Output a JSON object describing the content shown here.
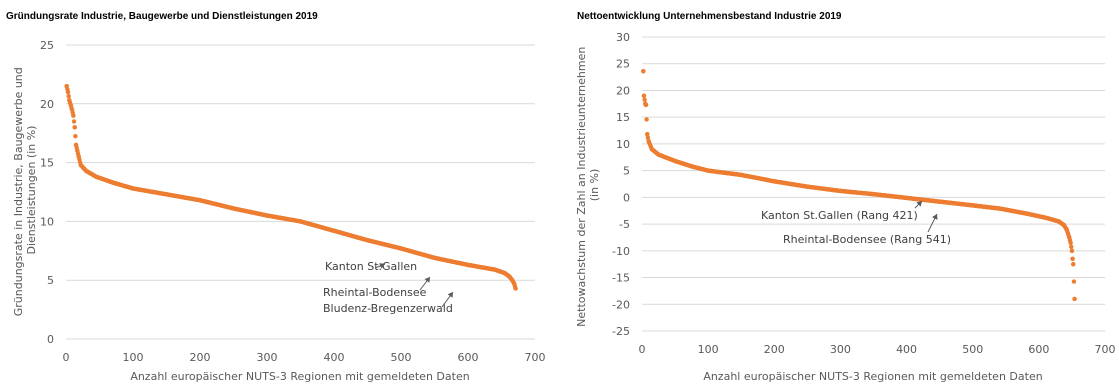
{
  "colors": {
    "marker": "#ED7D31",
    "grid": "#D9D9D9",
    "text": "#595959"
  },
  "chart_data": [
    {
      "type": "scatter",
      "title": "Gründungsrate Industrie, Baugewerbe und Dienstleistungen 2019",
      "xlabel": "Anzahl europäischer NUTS-3 Regionen mit gemeldeten Daten",
      "ylabel": "Gründungsrate in Industrie, Baugewerbe und Dienstleistungen (in %)",
      "ylabel_lines": [
        "Gründungsrate in Industrie, Baugewerbe und",
        "Dienstleistungen (in %)"
      ],
      "xlim": [
        0,
        700
      ],
      "ylim": [
        0,
        25
      ],
      "xticks": [
        0,
        100,
        200,
        300,
        400,
        500,
        600,
        700
      ],
      "yticks": [
        0,
        5,
        10,
        15,
        20,
        25
      ],
      "grid": "horizontal",
      "series": [
        {
          "points_shape": [
            [
              1,
              21.5
            ],
            [
              3,
              21.0
            ],
            [
              5,
              20.3
            ],
            [
              7,
              19.9
            ],
            [
              9,
              19.5
            ],
            [
              11,
              19.0
            ],
            [
              13,
              18.0
            ],
            [
              15,
              16.5
            ],
            [
              17,
              16.0
            ],
            [
              19,
              15.5
            ],
            [
              22,
              14.8
            ],
            [
              30,
              14.3
            ],
            [
              45,
              13.8
            ],
            [
              70,
              13.3
            ],
            [
              100,
              12.8
            ],
            [
              150,
              12.3
            ],
            [
              200,
              11.8
            ],
            [
              250,
              11.1
            ],
            [
              300,
              10.5
            ],
            [
              350,
              10.0
            ],
            [
              400,
              9.2
            ],
            [
              450,
              8.4
            ],
            [
              500,
              7.7
            ],
            [
              550,
              6.9
            ],
            [
              600,
              6.3
            ],
            [
              640,
              5.9
            ],
            [
              655,
              5.6
            ],
            [
              662,
              5.3
            ],
            [
              666,
              5.0
            ],
            [
              669,
              4.7
            ],
            [
              671,
              4.3
            ]
          ],
          "n_points": 671
        }
      ],
      "annotations": [
        {
          "label": "Kanton St.Gallen",
          "x": 475,
          "y": 5.9
        },
        {
          "label": "Rheintal-Bodensee",
          "x": 552,
          "y": 5.4
        },
        {
          "label": "Bludenz-Bregenzerwald",
          "x": 590,
          "y": 4.6
        }
      ]
    },
    {
      "type": "scatter",
      "title": "Nettoentwicklung Unternehmensbestand Industrie 2019",
      "xlabel": "Anzahl europäischer NUTS-3 Regionen mit gemeldeten Daten",
      "ylabel": "Nettowachstum der Zahl an Industrieunternehmen (in %)",
      "ylabel_lines": [
        "Nettowachstum der Zahl an Industrieunternehmen",
        "(in %)"
      ],
      "xlim": [
        0,
        700
      ],
      "ylim": [
        -25,
        30
      ],
      "xticks": [
        0,
        100,
        200,
        300,
        400,
        500,
        600,
        700
      ],
      "yticks": [
        -25,
        -20,
        -15,
        -10,
        -5,
        0,
        5,
        10,
        15,
        20,
        25,
        30
      ],
      "grid": "horizontal",
      "series": [
        {
          "points_shape": [
            [
              2,
              23.6
            ],
            [
              3,
              19.0
            ],
            [
              5,
              17.5
            ],
            [
              6,
              17.3
            ],
            [
              8,
              11.8
            ],
            [
              10,
              10.5
            ],
            [
              15,
              9.0
            ],
            [
              25,
              8.0
            ],
            [
              50,
              6.8
            ],
            [
              75,
              5.8
            ],
            [
              100,
              5.0
            ],
            [
              150,
              4.2
            ],
            [
              200,
              3.0
            ],
            [
              250,
              2.0
            ],
            [
              300,
              1.2
            ],
            [
              350,
              0.6
            ],
            [
              400,
              -0.1
            ],
            [
              421,
              -0.4
            ],
            [
              450,
              -0.8
            ],
            [
              500,
              -1.5
            ],
            [
              541,
              -2.1
            ],
            [
              580,
              -3.0
            ],
            [
              610,
              -3.8
            ],
            [
              630,
              -4.5
            ],
            [
              638,
              -5.2
            ],
            [
              642,
              -6.0
            ],
            [
              646,
              -7.5
            ],
            [
              648,
              -8.5
            ],
            [
              650,
              -10.0
            ],
            [
              651,
              -11.5
            ],
            [
              652,
              -12.5
            ],
            [
              654,
              -19.0
            ]
          ],
          "n_points": 654
        }
      ],
      "annotations": [
        {
          "label": "Kanton St.Gallen (Rang 421)",
          "x": 421,
          "y": -0.4
        },
        {
          "label": "Rheintal-Bodensee (Rang 541)",
          "x": 541,
          "y": -2.1
        }
      ]
    }
  ]
}
